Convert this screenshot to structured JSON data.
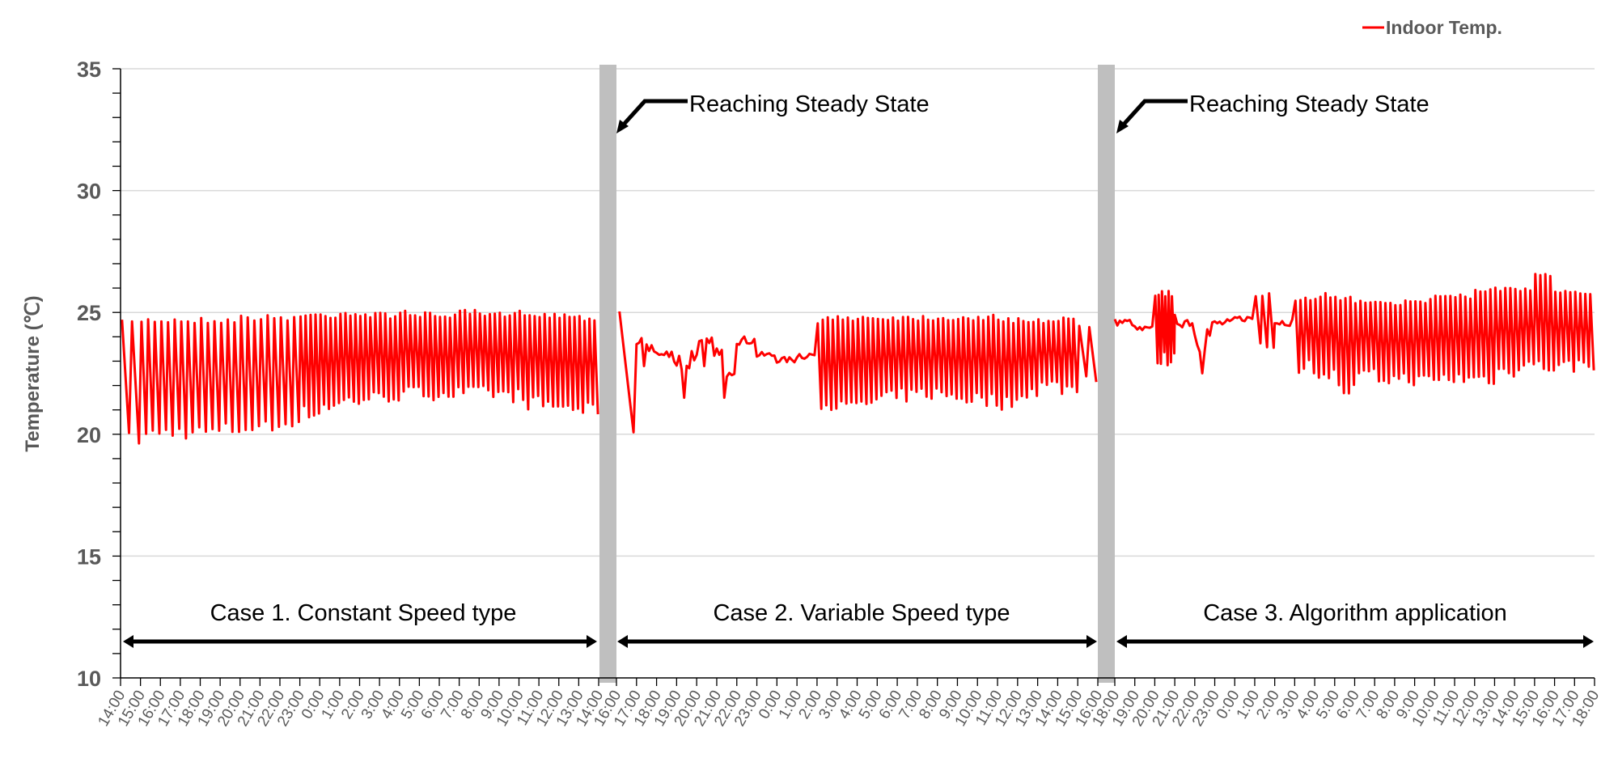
{
  "chart_data": {
    "type": "line",
    "ylabel": "Temperature (℃)",
    "ylim": [
      10,
      35
    ],
    "yticks": [
      10,
      15,
      20,
      25,
      30,
      35
    ],
    "grid": "horizontal-major",
    "legend": {
      "position": "top-right",
      "entries": [
        {
          "name": "Indoor Temp.",
          "color": "#FF0000"
        }
      ]
    },
    "series_color": "#FF0000",
    "separator_color": "#BFBFBF",
    "annotations": {
      "steady_state": "Reaching Steady State",
      "case1": "Case 1. Constant Speed type",
      "case2": "Case 2. Variable Speed type",
      "case3": "Case 3. Algorithm application"
    },
    "cases": [
      {
        "labels": [
          "14:00",
          "15:00",
          "16:00",
          "17:00",
          "18:00",
          "19:00",
          "20:00",
          "21:00",
          "22:00",
          "23:00",
          "0:00",
          "1:00",
          "2:00",
          "3:00",
          "4:00",
          "5:00",
          "6:00",
          "7:00",
          "8:00",
          "9:00",
          "10:00",
          "11:00",
          "12:00",
          "13:00",
          "14:00"
        ],
        "hourly_low": [
          19.5,
          19.7,
          19.8,
          19.8,
          19.8,
          19.9,
          20.0,
          20.0,
          20.3,
          20.6,
          20.9,
          21.1,
          21.2,
          21.3,
          21.4,
          21.4,
          21.4,
          21.4,
          21.4,
          21.3,
          21.0,
          20.9,
          20.8,
          20.7
        ],
        "hourly_high": [
          24.7,
          24.8,
          24.8,
          24.8,
          24.8,
          24.8,
          24.9,
          24.9,
          24.9,
          25.0,
          25.0,
          25.1,
          25.0,
          25.0,
          25.1,
          25.0,
          25.0,
          25.1,
          25.0,
          25.0,
          25.1,
          25.0,
          25.0,
          24.9
        ],
        "cycles_per_hour": [
          2,
          2.5,
          2.5,
          2.5,
          2.5,
          2.5,
          2.5,
          3,
          3,
          3.5,
          4,
          4,
          4,
          4,
          4,
          4,
          4,
          4,
          4,
          4,
          4,
          4,
          4,
          4
        ]
      },
      {
        "labels": [
          "16:00",
          "17:00",
          "18:00",
          "19:00",
          "20:00",
          "21:00",
          "22:00",
          "23:00",
          "0:00",
          "1:00",
          "2:00",
          "3:00",
          "4:00",
          "5:00",
          "6:00",
          "7:00",
          "8:00",
          "9:00",
          "10:00",
          "11:00",
          "12:00",
          "13:00",
          "14:00",
          "15:00",
          "16:00"
        ],
        "hourly_low": [
          20.0,
          22.8,
          22.7,
          21.5,
          22.8,
          21.5,
          23.5,
          23.0,
          22.8,
          22.9,
          21.0,
          20.8,
          21.0,
          21.2,
          21.3,
          21.4,
          21.3,
          21.2,
          21.1,
          21.0,
          21.5,
          21.7,
          21.6,
          22.0
        ],
        "hourly_high": [
          25.2,
          24.6,
          23.8,
          24.8,
          24.4,
          24.7,
          24.2,
          23.5,
          23.3,
          23.6,
          24.8,
          24.9,
          24.9,
          24.9,
          24.9,
          24.9,
          24.9,
          24.9,
          24.9,
          24.8,
          24.8,
          24.8,
          24.8,
          24.6
        ],
        "cycles_per_hour": [
          1,
          0,
          0,
          0,
          0,
          0,
          0,
          0,
          0,
          0,
          4,
          4,
          4,
          4,
          4,
          4,
          4,
          4,
          4,
          4,
          4,
          4,
          4,
          2
        ]
      },
      {
        "labels": [
          "18:00",
          "19:00",
          "20:00",
          "21:00",
          "22:00",
          "23:00",
          "0:00",
          "1:00",
          "2:00",
          "3:00",
          "4:00",
          "5:00",
          "6:00",
          "7:00",
          "8:00",
          "9:00",
          "10:00",
          "11:00",
          "12:00",
          "13:00",
          "14:00",
          "15:00",
          "16:00",
          "17:00",
          "18:00"
        ],
        "hourly_low": [
          24.3,
          24.0,
          22.8,
          24.1,
          22.5,
          24.2,
          24.5,
          23.5,
          24.3,
          22.5,
          22.2,
          21.5,
          22.1,
          22.0,
          22.0,
          21.9,
          22.0,
          22.0,
          22.0,
          22.3,
          22.6,
          22.5,
          22.5,
          22.6
        ],
        "hourly_high": [
          24.9,
          24.6,
          25.9,
          25.2,
          25.7,
          24.9,
          25.0,
          25.8,
          24.9,
          25.7,
          25.8,
          25.7,
          25.6,
          25.6,
          25.5,
          25.6,
          25.8,
          25.8,
          26.0,
          26.1,
          26.0,
          26.6,
          26.0,
          26.0
        ],
        "cycles_per_hour": [
          0,
          0,
          6,
          0,
          0,
          0,
          0,
          3,
          0,
          4,
          4,
          4,
          4,
          4,
          4,
          4,
          4,
          4,
          4,
          4,
          4,
          4,
          4,
          4
        ]
      }
    ]
  }
}
